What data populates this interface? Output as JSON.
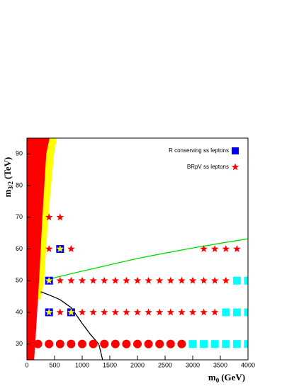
{
  "chart_data": {
    "type": "scatter",
    "x_label": {
      "main": "m",
      "sub": "0",
      "unit": "(GeV)"
    },
    "y_label": {
      "main": "m",
      "sub": "3/2",
      "unit": "(TeV)"
    },
    "xlim": [
      0,
      4000
    ],
    "ylim": [
      25,
      95
    ],
    "xticks": [
      0,
      500,
      1000,
      1500,
      2000,
      2500,
      3000,
      3500,
      4000
    ],
    "yticks": [
      30,
      40,
      50,
      60,
      70,
      80,
      90
    ],
    "regions": [
      {
        "color": "#ffff00",
        "x": [
          0,
          540,
          490,
          385,
          310,
          250,
          0
        ],
        "values": [
          95,
          95,
          90,
          70,
          50,
          44,
          44
        ]
      },
      {
        "color": "#ff0000",
        "x": [
          0,
          410,
          350,
          280,
          220,
          150,
          130,
          0
        ],
        "values": [
          95,
          95,
          90,
          70,
          50,
          30,
          25,
          25
        ]
      }
    ],
    "lines": [
      {
        "color": "#00dd00",
        "x": [
          400,
          1000,
          1500,
          2000,
          2500,
          3000,
          3500,
          4000
        ],
        "values": [
          50.5,
          53,
          55,
          57,
          58.7,
          60.3,
          61.8,
          63.2
        ]
      },
      {
        "color": "#000000",
        "x": [
          250,
          400,
          600,
          800,
          1000,
          1150,
          1300,
          1370
        ],
        "values": [
          46.5,
          45.5,
          44,
          41.5,
          36.5,
          33,
          30,
          25
        ]
      }
    ],
    "series": [
      {
        "marker": "circle",
        "color": "#ff0000",
        "x": [
          200,
          400,
          600,
          800,
          1000,
          1200,
          1400,
          1600,
          1800,
          2000,
          2200,
          2400,
          2600,
          2800
        ],
        "values": [
          30,
          30,
          30,
          30,
          30,
          30,
          30,
          30,
          30,
          30,
          30,
          30,
          30,
          30
        ]
      },
      {
        "marker": "square",
        "color": "#00ffff",
        "x": [
          3000,
          3200,
          3400,
          3600,
          3800,
          4000,
          3600,
          3800,
          4000,
          3800,
          4000
        ],
        "values": [
          30,
          30,
          30,
          30,
          30,
          30,
          40,
          40,
          40,
          50,
          50
        ]
      },
      {
        "name": "R conserving ss leptons",
        "marker": "square",
        "color": "#0000ff",
        "x": [
          400,
          400,
          600,
          800
        ],
        "values": [
          50,
          40,
          60,
          40
        ]
      },
      {
        "marker": "star",
        "color": "#ffff00",
        "x": [
          400,
          400,
          600,
          800
        ],
        "values": [
          50,
          40,
          60,
          40
        ]
      },
      {
        "name": "BRpV ss leptons",
        "marker": "star",
        "color": "#ff0000",
        "x": [
          600,
          1000,
          1200,
          1400,
          1600,
          1800,
          2000,
          2200,
          2400,
          2600,
          2800,
          3000,
          3200,
          3400,
          600,
          800,
          1000,
          1200,
          1400,
          1600,
          1800,
          2000,
          2200,
          2400,
          2600,
          2800,
          3000,
          3200,
          3400,
          3600,
          400,
          800,
          3200,
          3400,
          3600,
          3800,
          400,
          600
        ],
        "values": [
          40,
          40,
          40,
          40,
          40,
          40,
          40,
          40,
          40,
          40,
          40,
          40,
          40,
          40,
          50,
          50,
          50,
          50,
          50,
          50,
          50,
          50,
          50,
          50,
          50,
          50,
          50,
          50,
          50,
          50,
          60,
          60,
          60,
          60,
          60,
          60,
          70,
          70
        ]
      }
    ]
  }
}
